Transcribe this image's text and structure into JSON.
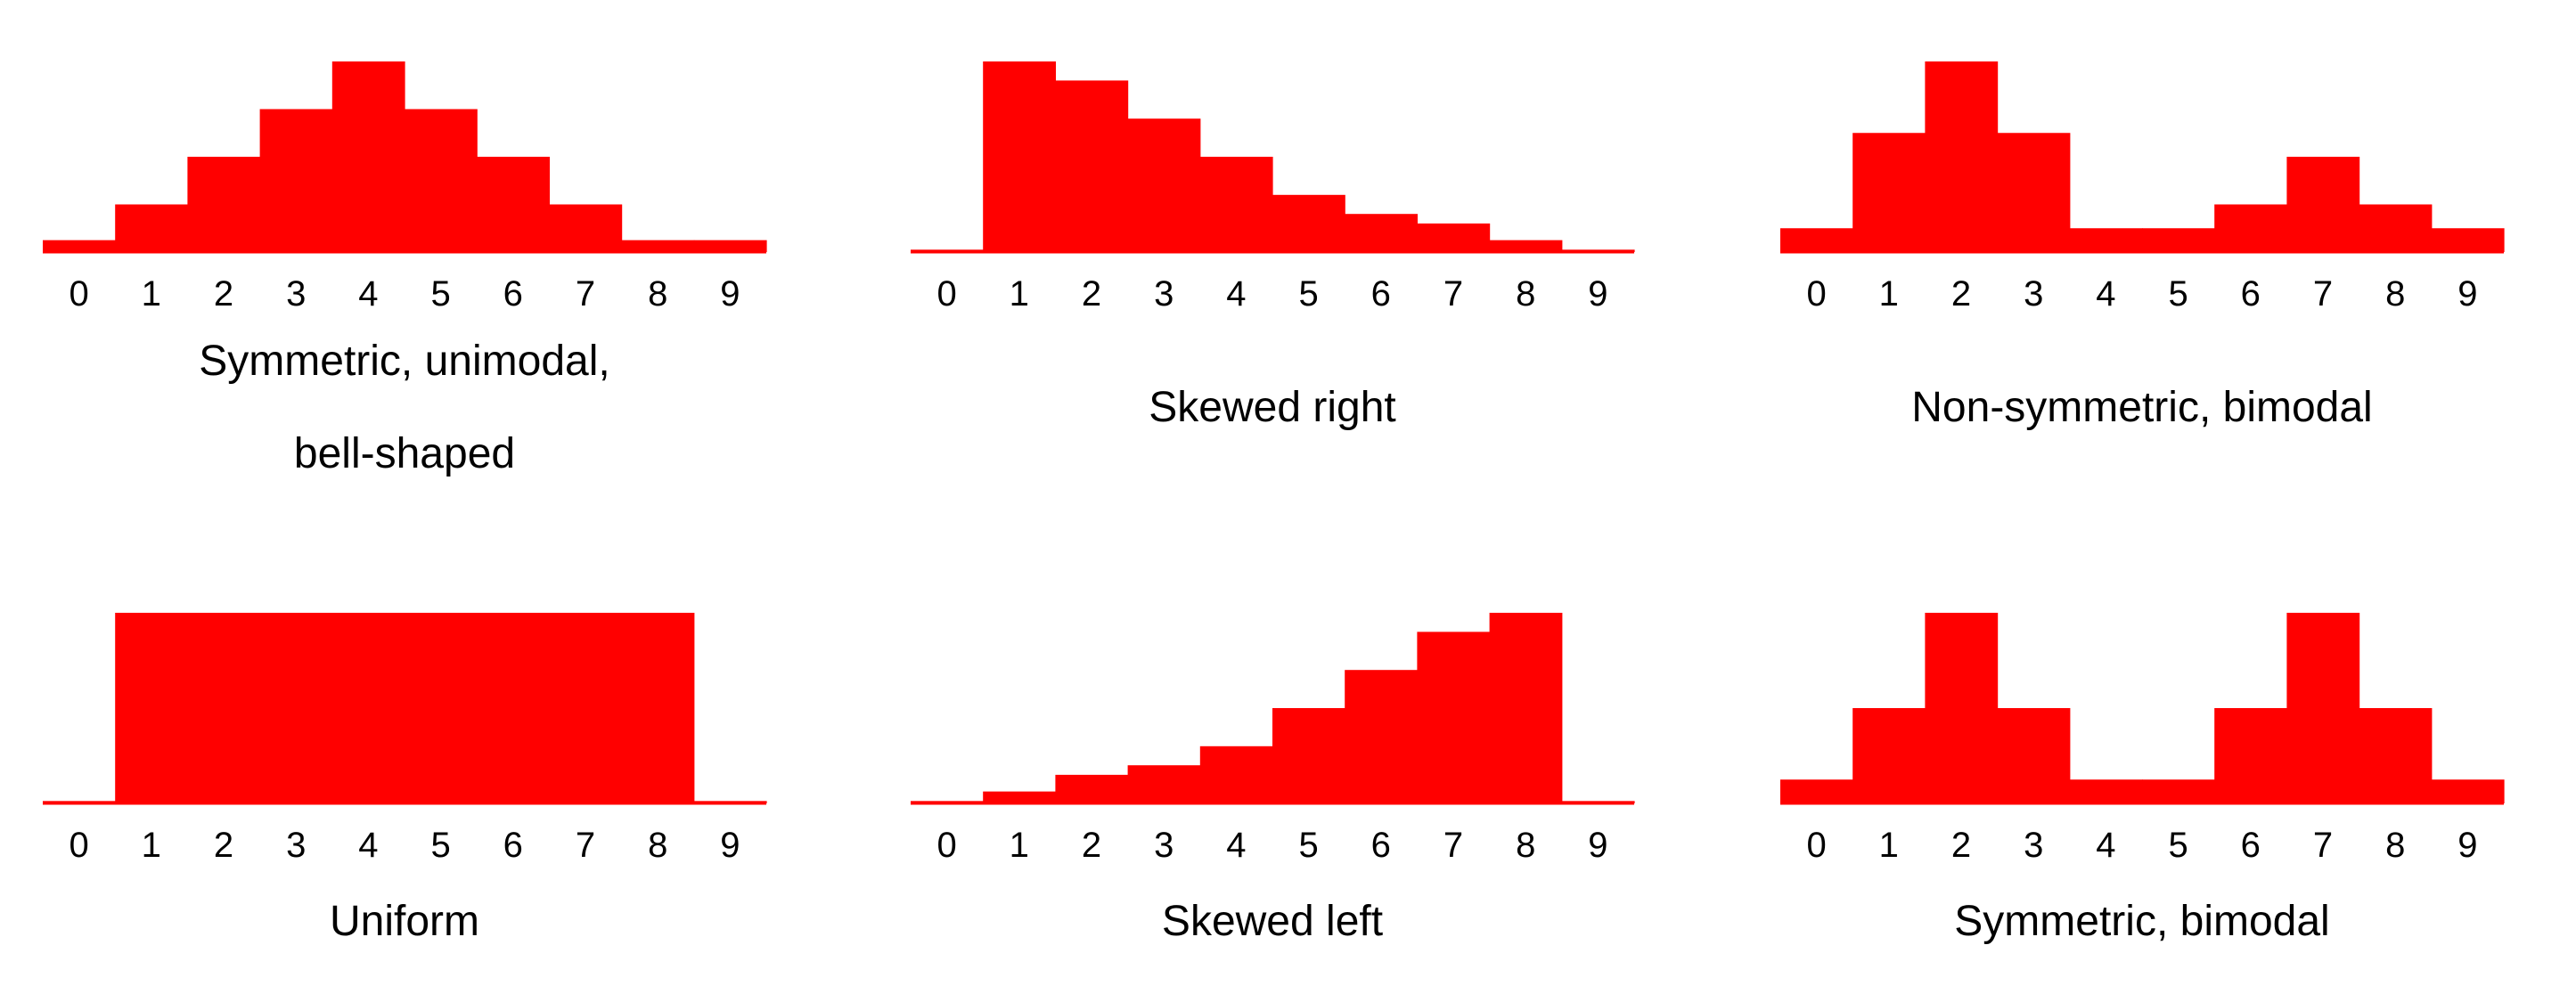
{
  "colors": {
    "bar": "#ff0000",
    "baseline": "#ff0000",
    "text": "#000000",
    "background": "#ffffff"
  },
  "chart_data": [
    {
      "type": "bar",
      "categories": [
        "0",
        "1",
        "2",
        "3",
        "4",
        "5",
        "6",
        "7",
        "8",
        "9"
      ],
      "values": [
        0.5,
        2,
        4,
        6,
        8,
        6,
        4,
        2,
        0.5,
        0.5
      ],
      "ylim": [
        0,
        8
      ],
      "caption_lines": [
        "Symmetric, unimodal,",
        "bell-shaped"
      ],
      "grid": false
    },
    {
      "type": "bar",
      "categories": [
        "0",
        "1",
        "2",
        "3",
        "4",
        "5",
        "6",
        "7",
        "8",
        "9"
      ],
      "values": [
        0.1,
        8,
        7.2,
        5.6,
        4,
        2.4,
        1.6,
        1.2,
        0.5,
        0.1
      ],
      "ylim": [
        0,
        8
      ],
      "caption_lines": [
        "Skewed right"
      ],
      "grid": false
    },
    {
      "type": "bar",
      "categories": [
        "0",
        "1",
        "2",
        "3",
        "4",
        "5",
        "6",
        "7",
        "8",
        "9"
      ],
      "values": [
        1,
        5,
        8,
        5,
        1,
        1,
        2,
        4,
        2,
        1
      ],
      "ylim": [
        0,
        8
      ],
      "caption_lines": [
        "Non-symmetric, bimodal"
      ],
      "grid": false
    },
    {
      "type": "bar",
      "categories": [
        "0",
        "1",
        "2",
        "3",
        "4",
        "5",
        "6",
        "7",
        "8",
        "9"
      ],
      "values": [
        0.1,
        8,
        8,
        8,
        8,
        8,
        8,
        8,
        8,
        0.1
      ],
      "ylim": [
        0,
        8
      ],
      "caption_lines": [
        "Uniform"
      ],
      "grid": false
    },
    {
      "type": "bar",
      "categories": [
        "0",
        "1",
        "2",
        "3",
        "4",
        "5",
        "6",
        "7",
        "8",
        "9"
      ],
      "values": [
        0.1,
        0.5,
        1.2,
        1.6,
        2.4,
        4,
        5.6,
        7.2,
        8,
        0.1
      ],
      "ylim": [
        0,
        8
      ],
      "caption_lines": [
        "Skewed left"
      ],
      "grid": false
    },
    {
      "type": "bar",
      "categories": [
        "0",
        "1",
        "2",
        "3",
        "4",
        "5",
        "6",
        "7",
        "8",
        "9"
      ],
      "values": [
        1,
        4,
        8,
        4,
        1,
        1,
        4,
        8,
        4,
        1
      ],
      "ylim": [
        0,
        8
      ],
      "caption_lines": [
        "Symmetric, bimodal"
      ],
      "grid": false
    }
  ]
}
